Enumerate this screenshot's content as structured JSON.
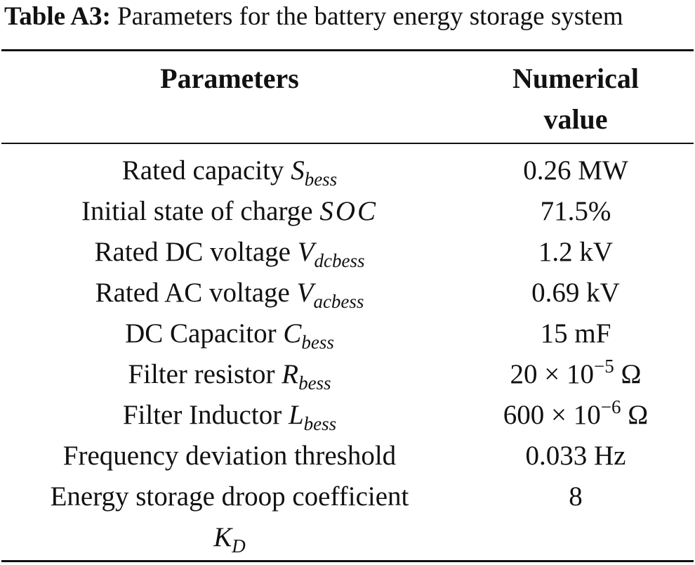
{
  "caption": {
    "label": "Table A3:",
    "text": " Parameters for the battery energy storage system"
  },
  "table": {
    "headers": {
      "parameters": "Parameters",
      "value_line1": "Numerical",
      "value_line2": "value"
    },
    "rows": [
      {
        "name": "Rated capacity ",
        "symbol": "S",
        "symbol_sub": "bess",
        "value": "0.26 MW"
      },
      {
        "name": "Initial state of charge ",
        "symbol": "SOC",
        "value": "71.5%"
      },
      {
        "name": "Rated DC voltage ",
        "symbol": "V",
        "symbol_sub": "dcbess",
        "value": "1.2 kV"
      },
      {
        "name": "Rated AC voltage ",
        "symbol": "V",
        "symbol_sub": "acbess",
        "value": "0.69 kV"
      },
      {
        "name": "DC Capacitor ",
        "symbol": "C",
        "symbol_sub": "bess",
        "value": "15 mF"
      },
      {
        "name": "Filter resistor ",
        "symbol": "R",
        "symbol_sub": "bess",
        "value_base": "20 × 10",
        "value_exp": "−5",
        "value_unit": " Ω"
      },
      {
        "name": "Filter Inductor ",
        "symbol": "L",
        "symbol_sub": "bess",
        "value_base": "600 × 10",
        "value_exp": "−6",
        "value_unit": " Ω"
      },
      {
        "name": "Frequency deviation threshold",
        "value": "0.033 Hz"
      },
      {
        "name": "Energy storage droop coefficient",
        "symbol": "K",
        "symbol_sub": "D",
        "value": "8"
      }
    ]
  }
}
